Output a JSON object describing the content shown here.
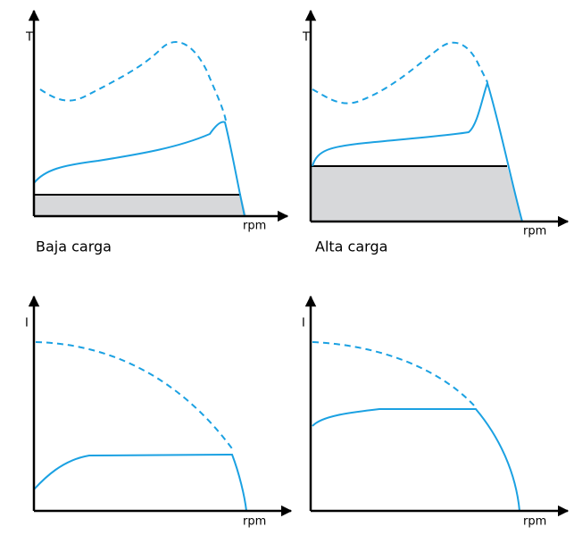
{
  "panels": [
    {
      "y_label": "T",
      "x_label": "rpm",
      "caption": "Baja carga"
    },
    {
      "y_label": "T",
      "x_label": "rpm",
      "caption": "Alta carga"
    },
    {
      "y_label": "I",
      "x_label": "rpm"
    },
    {
      "y_label": "I",
      "x_label": "rpm"
    }
  ]
}
